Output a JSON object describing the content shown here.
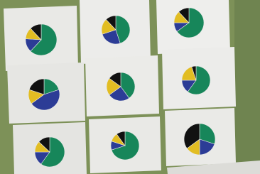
{
  "panels": [
    {
      "slices": [
        {
          "color": "#17865a",
          "value": 62
        },
        {
          "color": "#2c3c96",
          "value": 14
        },
        {
          "color": "#e2bd22",
          "value": 12
        },
        {
          "color": "#111111",
          "value": 12
        }
      ]
    },
    {
      "slices": [
        {
          "color": "#17865a",
          "value": 45
        },
        {
          "color": "#2c3c96",
          "value": 25
        },
        {
          "color": "#e2bd22",
          "value": 18
        },
        {
          "color": "#111111",
          "value": 12
        }
      ]
    },
    {
      "slices": [
        {
          "color": "#17865a",
          "value": 65
        },
        {
          "color": "#2c3c96",
          "value": 10
        },
        {
          "color": "#e2bd22",
          "value": 13
        },
        {
          "color": "#111111",
          "value": 12
        }
      ]
    },
    {
      "slices": [
        {
          "color": "#17865a",
          "value": 20
        },
        {
          "color": "#2c3c96",
          "value": 45
        },
        {
          "color": "#e2bd22",
          "value": 15
        },
        {
          "color": "#111111",
          "value": 20
        }
      ]
    },
    {
      "slices": [
        {
          "color": "#17865a",
          "value": 40
        },
        {
          "color": "#2c3c96",
          "value": 25
        },
        {
          "color": "#e2bd22",
          "value": 20
        },
        {
          "color": "#111111",
          "value": 15
        }
      ]
    },
    {
      "slices": [
        {
          "color": "#17865a",
          "value": 60
        },
        {
          "color": "#2c3c96",
          "value": 15
        },
        {
          "color": "#e2bd22",
          "value": 20
        },
        {
          "color": "#111111",
          "value": 5
        }
      ]
    },
    {
      "slices": [
        {
          "color": "#17865a",
          "value": 60
        },
        {
          "color": "#2c3c96",
          "value": 15
        },
        {
          "color": "#e2bd22",
          "value": 12
        },
        {
          "color": "#111111",
          "value": 13
        }
      ]
    },
    {
      "slices": [
        {
          "color": "#17865a",
          "value": 70
        },
        {
          "color": "#2c3c96",
          "value": 10
        },
        {
          "color": "#e2bd22",
          "value": 10
        },
        {
          "color": "#111111",
          "value": 10
        }
      ]
    },
    {
      "slices": [
        {
          "color": "#17865a",
          "value": 30
        },
        {
          "color": "#2c3c96",
          "value": 20
        },
        {
          "color": "#e2bd22",
          "value": 15
        },
        {
          "color": "#111111",
          "value": 35
        }
      ]
    }
  ]
}
